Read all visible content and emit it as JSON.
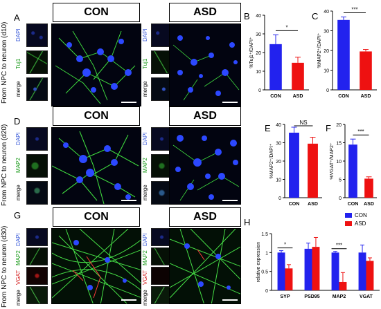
{
  "rows": [
    {
      "side_label": "From NPC to neuron (d10)",
      "panel_letter": "A",
      "channels": [
        {
          "label": "DAPI",
          "color": "#3a5bd9"
        },
        {
          "label": "Tuj1",
          "color": "#1a9a1a"
        },
        {
          "label": "merge",
          "color": "#000000"
        }
      ]
    },
    {
      "side_label": "From NPC to neuron (d20)",
      "panel_letter": "D",
      "channels": [
        {
          "label": "DAPI",
          "color": "#3a5bd9"
        },
        {
          "label": "MAP2",
          "color": "#1a9a1a"
        },
        {
          "label": "merge",
          "color": "#000000"
        }
      ]
    },
    {
      "side_label": "From NPC to neuron (d30)",
      "panel_letter": "G",
      "channels": [
        {
          "label": "DAPI",
          "color": "#3a5bd9"
        },
        {
          "label": "MAP2",
          "color": "#1a9a1a"
        },
        {
          "label": "VGAT",
          "color": "#d42020"
        },
        {
          "label": "merge",
          "color": "#000000"
        }
      ]
    }
  ],
  "conditions": {
    "con": "CON",
    "asd": "ASD"
  },
  "colors": {
    "con": "#2222ee",
    "asd": "#ee1111"
  },
  "chart_data": [
    {
      "letter": "B",
      "type": "bar",
      "ylabel": "%Tuj1⁺/DAPI⁺",
      "ylim": [
        0,
        40
      ],
      "yticks": [
        0,
        10,
        20,
        30,
        40
      ],
      "categories": [
        "CON",
        "ASD"
      ],
      "values": [
        24.5,
        14.5
      ],
      "errors": [
        5,
        3
      ],
      "sig": "*"
    },
    {
      "letter": "C",
      "type": "bar",
      "ylabel": "%MAP2⁺/DAPI⁺",
      "ylim": [
        0,
        40
      ],
      "yticks": [
        0,
        10,
        20,
        30,
        40
      ],
      "categories": [
        "CON",
        "ASD"
      ],
      "values": [
        35.5,
        19.5
      ],
      "errors": [
        1.5,
        1
      ],
      "sig": "***"
    },
    {
      "letter": "E",
      "type": "bar",
      "ylabel": "%MAP2⁺/DAPI⁺",
      "ylim": [
        0,
        40
      ],
      "yticks": [
        0,
        10,
        20,
        30,
        40
      ],
      "categories": [
        "CON",
        "ASD"
      ],
      "values": [
        35.5,
        29.5
      ],
      "errors": [
        3,
        3.5
      ],
      "sig": "NS"
    },
    {
      "letter": "F",
      "type": "bar",
      "ylabel": "%VGAT⁺/MAP2⁺",
      "ylim": [
        0,
        20
      ],
      "yticks": [
        0,
        5,
        10,
        15,
        20
      ],
      "categories": [
        "CON",
        "ASD"
      ],
      "values": [
        14.5,
        5.2
      ],
      "errors": [
        1.5,
        0.5
      ],
      "sig": "***"
    },
    {
      "letter": "H",
      "type": "bar",
      "ylabel": "relative expression",
      "ylim": [
        0,
        1.5
      ],
      "yticks": [
        0,
        0.5,
        1,
        1.5
      ],
      "categories": [
        "SYP",
        "PSD95",
        "MAP2",
        "VGAT"
      ],
      "series": [
        {
          "name": "CON",
          "values": [
            1.0,
            1.1,
            1.0,
            1.0
          ],
          "errors": [
            0.05,
            0.15,
            0.03,
            0.2
          ]
        },
        {
          "name": "ASD",
          "values": [
            0.58,
            1.15,
            0.22,
            0.78
          ],
          "errors": [
            0.1,
            0.25,
            0.25,
            0.08
          ]
        }
      ],
      "sig": [
        "*",
        "",
        "***",
        ""
      ],
      "legend": "top-right"
    }
  ]
}
